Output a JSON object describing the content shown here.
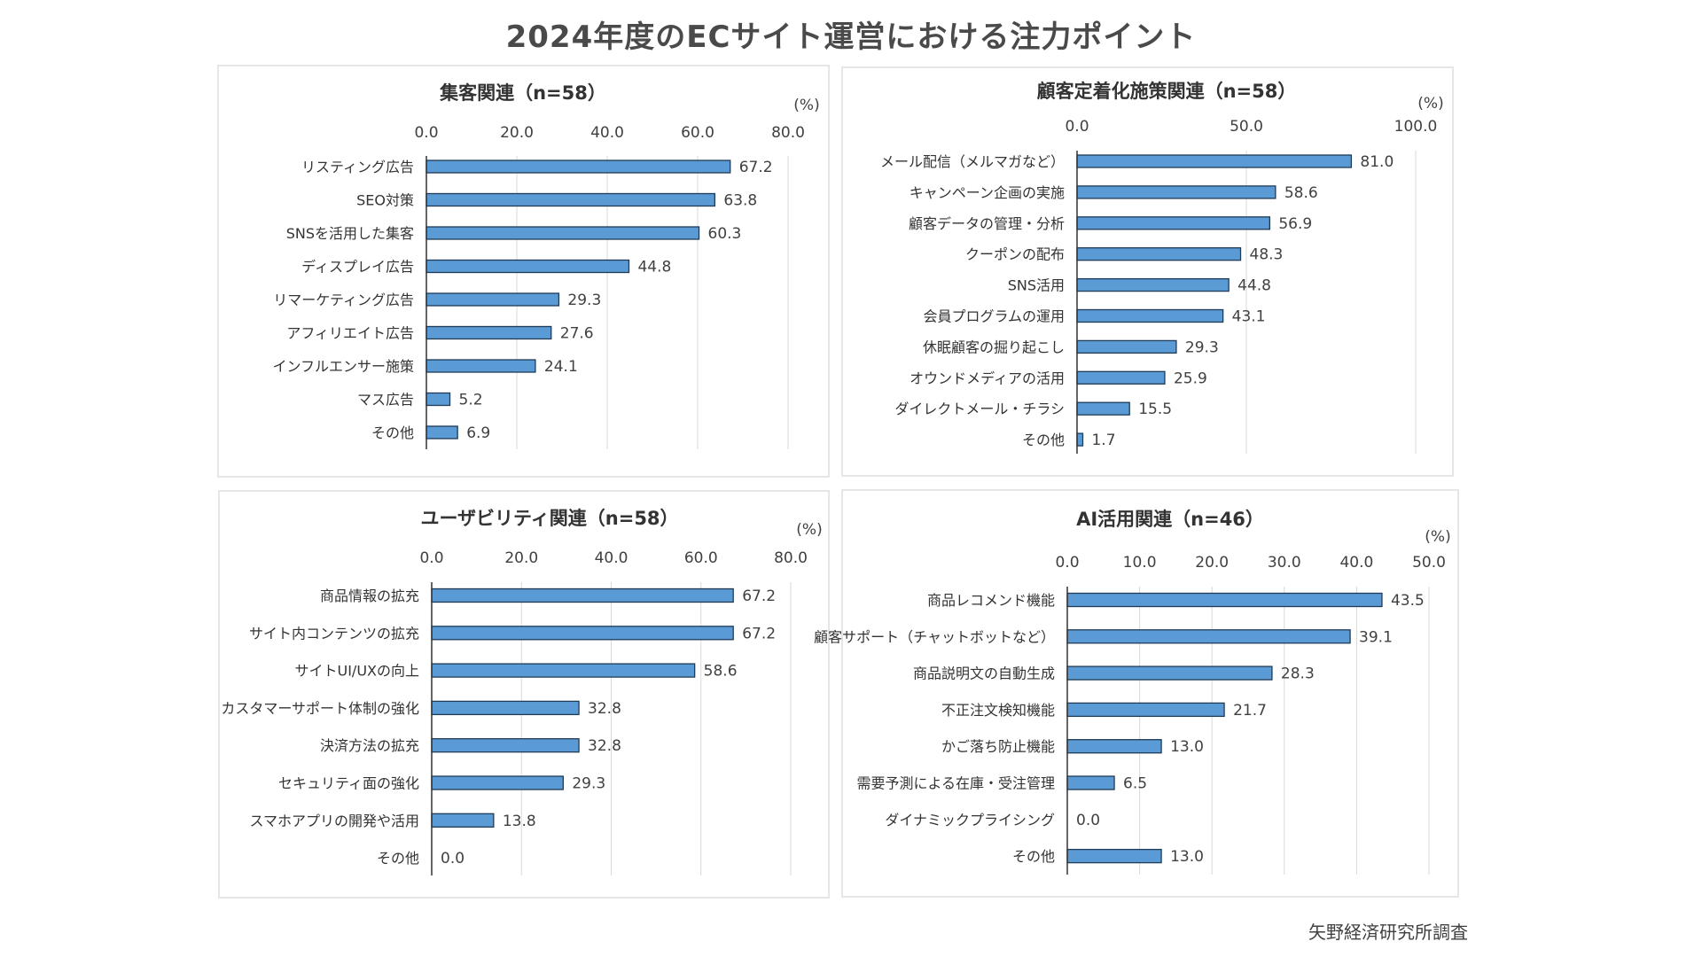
{
  "title": "2024年度のECサイト運営における注力ポイント",
  "source": "矢野経済研究所調査",
  "bar_color": "#5b9bd5",
  "chart_data": [
    {
      "type": "bar",
      "orientation": "horizontal",
      "title": "集客関連（n=58）",
      "unit": "(%)",
      "xlim": [
        0,
        80
      ],
      "ticks": [
        0,
        20,
        40,
        60,
        80
      ],
      "tick_labels": [
        "0.0",
        "20.0",
        "40.0",
        "60.0",
        "80.0"
      ],
      "grid": true,
      "categories": [
        "リスティング広告",
        "SEO対策",
        "SNSを活用した集客",
        "ディスプレイ広告",
        "リマーケティング広告",
        "アフィリエイト広告",
        "インフルエンサー施策",
        "マス広告",
        "その他"
      ],
      "values": [
        67.2,
        63.8,
        60.3,
        44.8,
        29.3,
        27.6,
        24.1,
        5.2,
        6.9
      ],
      "value_labels": [
        "67.2",
        "63.8",
        "60.3",
        "44.8",
        "29.3",
        "27.6",
        "24.1",
        "5.2",
        "6.9"
      ]
    },
    {
      "type": "bar",
      "orientation": "horizontal",
      "title": "顧客定着化施策関連（n=58）",
      "unit": "(%)",
      "xlim": [
        0,
        100
      ],
      "ticks": [
        0,
        50,
        100
      ],
      "tick_labels": [
        "0.0",
        "50.0",
        "100.0"
      ],
      "grid": true,
      "categories": [
        "メール配信（メルマガなど）",
        "キャンペーン企画の実施",
        "顧客データの管理・分析",
        "クーポンの配布",
        "SNS活用",
        "会員プログラムの運用",
        "休眠顧客の掘り起こし",
        "オウンドメディアの活用",
        "ダイレクトメール・チラシ",
        "その他"
      ],
      "values": [
        81.0,
        58.6,
        56.9,
        48.3,
        44.8,
        43.1,
        29.3,
        25.9,
        15.5,
        1.7
      ],
      "value_labels": [
        "81.0",
        "58.6",
        "56.9",
        "48.3",
        "44.8",
        "43.1",
        "29.3",
        "25.9",
        "15.5",
        "1.7"
      ]
    },
    {
      "type": "bar",
      "orientation": "horizontal",
      "title": "ユーザビリティ関連（n=58）",
      "unit": "(%)",
      "xlim": [
        0,
        80
      ],
      "ticks": [
        0,
        20,
        40,
        60,
        80
      ],
      "tick_labels": [
        "0.0",
        "20.0",
        "40.0",
        "60.0",
        "80.0"
      ],
      "grid": true,
      "categories": [
        "商品情報の拡充",
        "サイト内コンテンツの拡充",
        "サイトUI/UXの向上",
        "カスタマーサポート体制の強化",
        "決済方法の拡充",
        "セキュリティ面の強化",
        "スマホアプリの開発や活用",
        "その他"
      ],
      "values": [
        67.2,
        67.2,
        58.6,
        32.8,
        32.8,
        29.3,
        13.8,
        0.0
      ],
      "value_labels": [
        "67.2",
        "67.2",
        "58.6",
        "32.8",
        "32.8",
        "29.3",
        "13.8",
        "0.0"
      ]
    },
    {
      "type": "bar",
      "orientation": "horizontal",
      "title": "AI活用関連（n=46）",
      "unit": "(%)",
      "xlim": [
        0,
        50
      ],
      "ticks": [
        0,
        10,
        20,
        30,
        40,
        50
      ],
      "tick_labels": [
        "0.0",
        "10.0",
        "20.0",
        "30.0",
        "40.0",
        "50.0"
      ],
      "grid": true,
      "categories": [
        "商品レコメンド機能",
        "顧客サポート（チャットボットなど）",
        "商品説明文の自動生成",
        "不正注文検知機能",
        "かご落ち防止機能",
        "需要予測による在庫・受注管理",
        "ダイナミックプライシング",
        "その他"
      ],
      "values": [
        43.5,
        39.1,
        28.3,
        21.7,
        13.0,
        6.5,
        0.0,
        13.0
      ],
      "value_labels": [
        "43.5",
        "39.1",
        "28.3",
        "21.7",
        "13.0",
        "6.5",
        "0.0",
        "13.0"
      ]
    }
  ]
}
